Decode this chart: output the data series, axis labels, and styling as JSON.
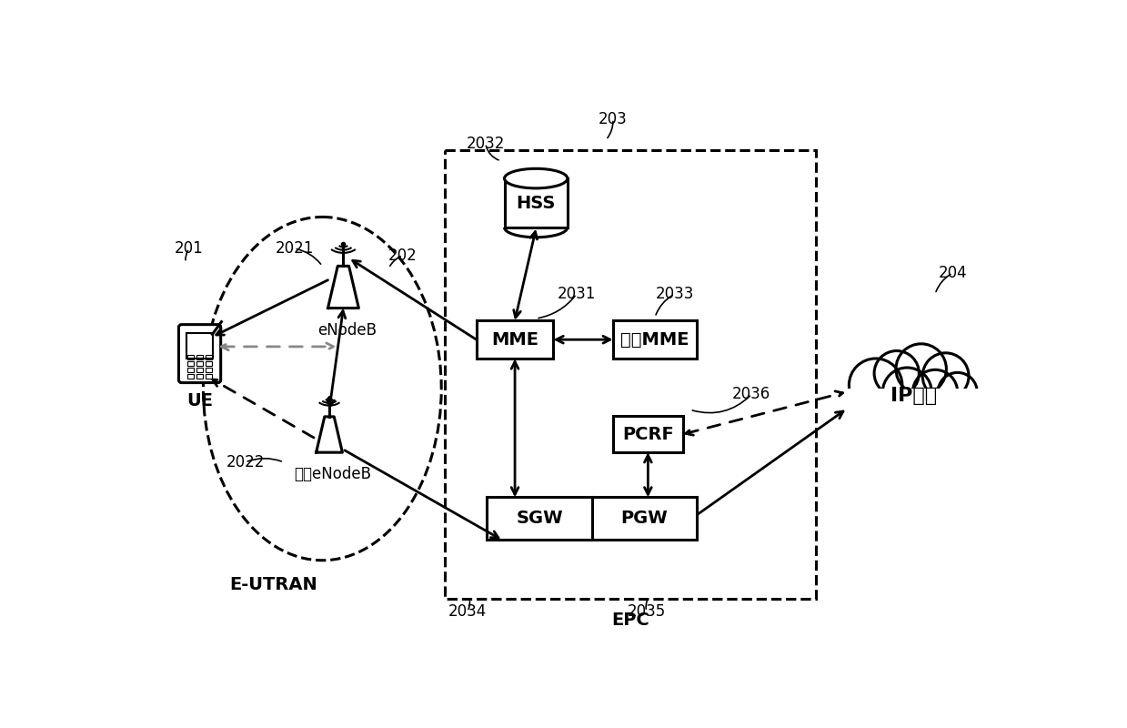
{
  "bg_color": "#ffffff",
  "labels": {
    "UE": "UE",
    "eNodeB": "eNodeB",
    "other_eNodeB": "其它eNodeB",
    "E_UTRAN": "E-UTRAN",
    "HSS": "HSS",
    "MME": "MME",
    "other_MME": "其它MME",
    "SGW": "SGW",
    "PGW": "PGW",
    "PCRF": "PCRF",
    "EPC": "EPC",
    "IP": "IP业务"
  },
  "refs": {
    "201": "201",
    "202": "202",
    "203": "203",
    "204": "204",
    "2021": "2021",
    "2022": "2022",
    "2031": "2031",
    "2032": "2032",
    "2033": "2033",
    "2034": "2034",
    "2035": "2035",
    "2036": "2036"
  }
}
